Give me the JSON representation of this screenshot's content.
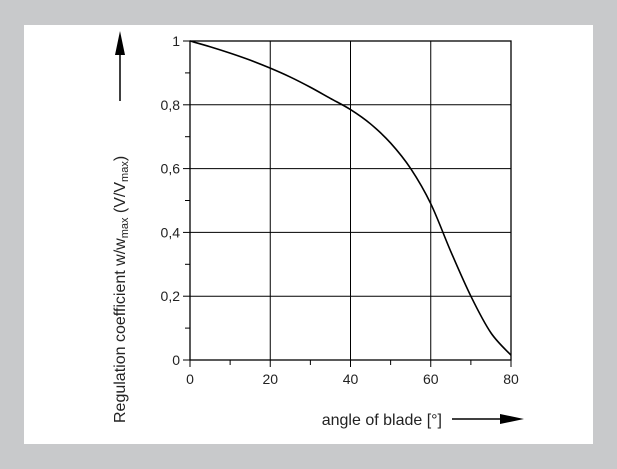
{
  "chart_data": {
    "type": "line",
    "xlabel": "angle of blade  [°]",
    "ylabel": {
      "pre": "Regulation coefficient w/w",
      "sub1": "max",
      "mid": " (V/V",
      "sub2": "max",
      "post": ")"
    },
    "xlim": [
      0,
      80
    ],
    "ylim": [
      0,
      1
    ],
    "x_ticks": [
      0,
      20,
      40,
      60,
      80
    ],
    "x_tick_labels": [
      "0",
      "20",
      "40",
      "60",
      "80"
    ],
    "y_ticks": [
      0,
      0.2,
      0.4,
      0.6,
      0.8,
      1
    ],
    "y_tick_labels": [
      "0",
      "0,2",
      "0,4",
      "0,6",
      "0,8",
      "1"
    ],
    "grid": true,
    "series": [
      {
        "x": [
          0,
          5,
          10,
          15,
          20,
          25,
          30,
          35,
          40,
          45,
          50,
          55,
          60,
          65,
          70,
          75,
          80
        ],
        "y": [
          1.0,
          0.982,
          0.962,
          0.94,
          0.915,
          0.887,
          0.855,
          0.82,
          0.785,
          0.74,
          0.68,
          0.6,
          0.49,
          0.34,
          0.2,
          0.085,
          0.015
        ],
        "color": "#000000"
      }
    ]
  }
}
